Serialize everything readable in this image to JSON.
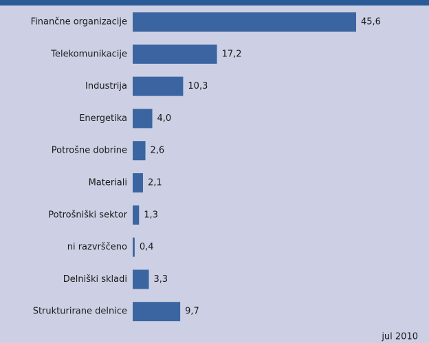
{
  "chart_data": {
    "type": "bar",
    "orientation": "horizontal",
    "categories": [
      "Finančne organizacije",
      "Telekomunikacije",
      "Industrija",
      "Energetika",
      "Potrošne dobrine",
      "Materiali",
      "Potrošniški sektor",
      "ni razvrščeno",
      "Delniški skladi",
      "Strukturirane delnice"
    ],
    "values": [
      45.6,
      17.2,
      10.3,
      4.0,
      2.6,
      2.1,
      1.3,
      0.4,
      3.3,
      9.7
    ],
    "value_labels": [
      "45,6",
      "17,2",
      "10,3",
      "4,0",
      "2,6",
      "2,1",
      "1,3",
      "0,4",
      "3,3",
      "9,7"
    ],
    "color": "#3b65a0",
    "note": "jul 2010"
  }
}
